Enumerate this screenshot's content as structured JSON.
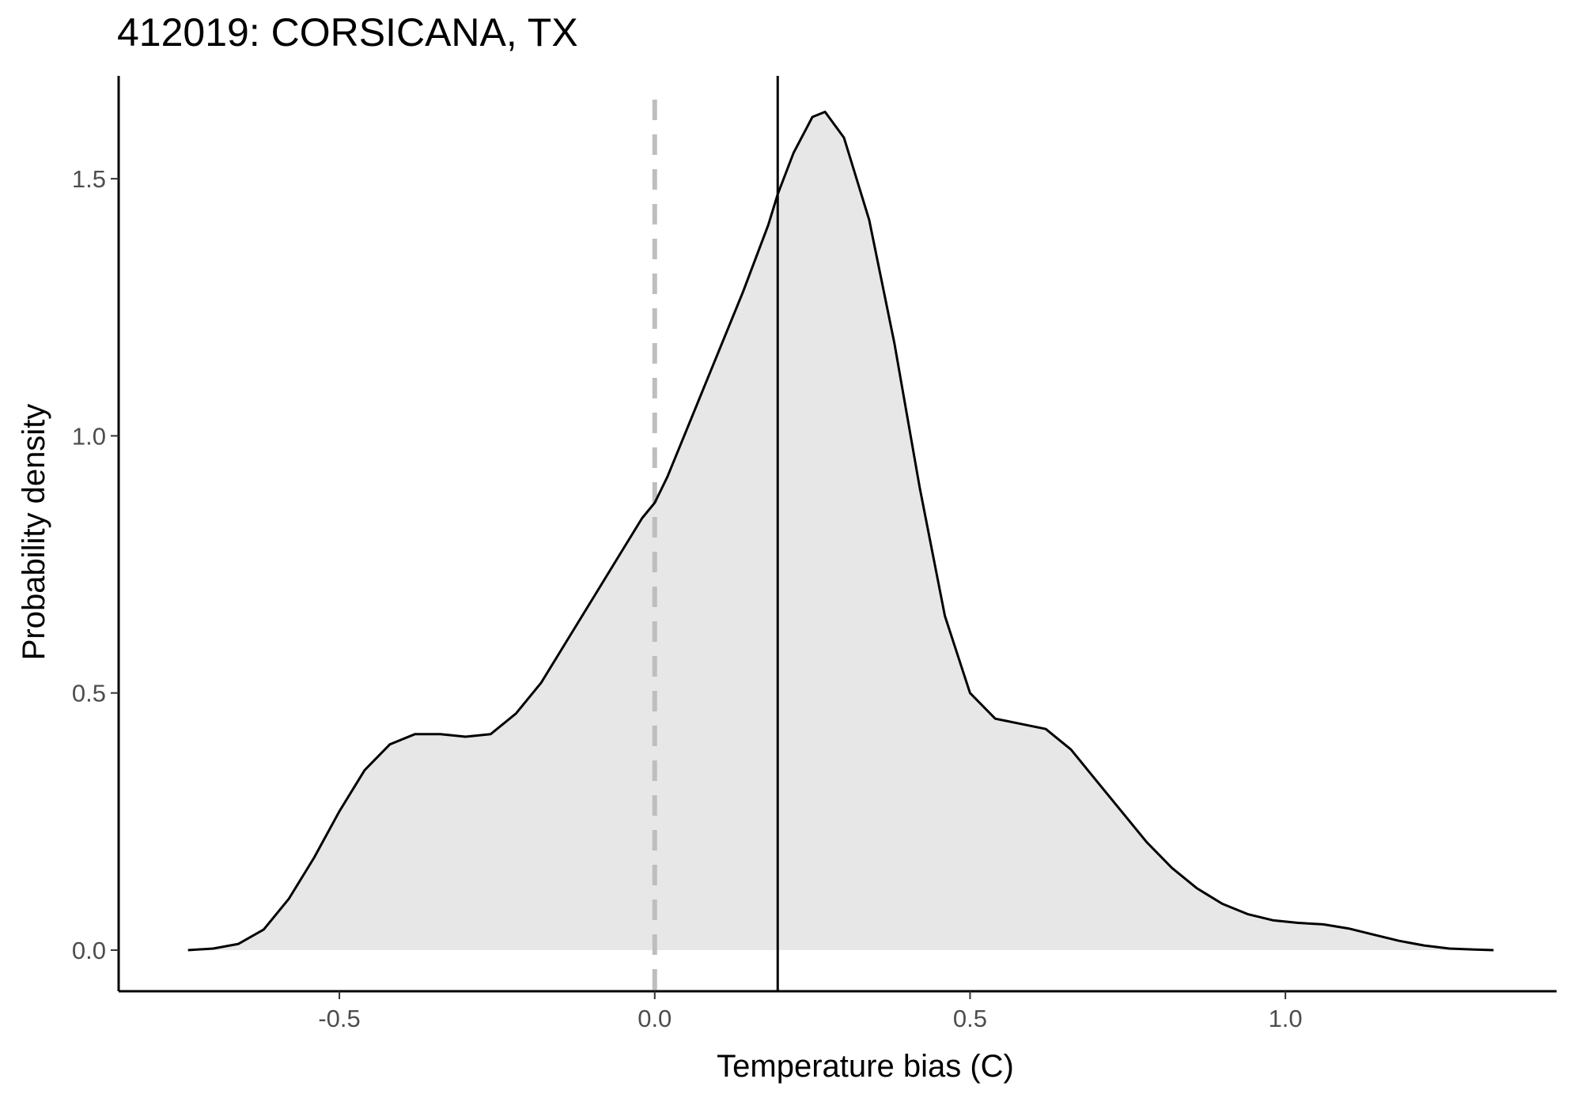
{
  "chart_data": {
    "type": "area",
    "title": "412019: CORSICANA, TX",
    "xlabel": "Temperature bias (C)",
    "ylabel": "Probability density",
    "xlim": [
      -0.85,
      1.43
    ],
    "ylim": [
      -0.08,
      1.7
    ],
    "xticks": [
      -0.5,
      0.0,
      0.5,
      1.0
    ],
    "xtick_labels": [
      "-0.5",
      "0.0",
      "0.5",
      "1.0"
    ],
    "yticks": [
      0.0,
      0.5,
      1.0,
      1.5
    ],
    "ytick_labels": [
      "0.0",
      "0.5",
      "1.0",
      "1.5"
    ],
    "grid": false,
    "fill_color": "#e6e7e6",
    "line_color": "#000000",
    "reference_lines": [
      {
        "x": 0.0,
        "style": "dashed",
        "color": "#bebebe"
      },
      {
        "x": 0.195,
        "style": "solid",
        "color": "#000000"
      }
    ],
    "density": {
      "x": [
        -0.74,
        -0.7,
        -0.66,
        -0.62,
        -0.58,
        -0.54,
        -0.5,
        -0.46,
        -0.42,
        -0.38,
        -0.34,
        -0.3,
        -0.26,
        -0.22,
        -0.18,
        -0.14,
        -0.1,
        -0.06,
        -0.02,
        0.0,
        0.02,
        0.06,
        0.1,
        0.14,
        0.18,
        0.195,
        0.22,
        0.25,
        0.27,
        0.3,
        0.34,
        0.38,
        0.42,
        0.46,
        0.5,
        0.54,
        0.58,
        0.62,
        0.66,
        0.7,
        0.74,
        0.78,
        0.82,
        0.86,
        0.9,
        0.94,
        0.98,
        1.02,
        1.06,
        1.1,
        1.14,
        1.18,
        1.22,
        1.26,
        1.3,
        1.33
      ],
      "y": [
        0.0,
        0.003,
        0.012,
        0.04,
        0.1,
        0.18,
        0.27,
        0.35,
        0.4,
        0.42,
        0.42,
        0.415,
        0.42,
        0.46,
        0.52,
        0.6,
        0.68,
        0.76,
        0.84,
        0.87,
        0.92,
        1.04,
        1.16,
        1.28,
        1.41,
        1.47,
        1.55,
        1.62,
        1.63,
        1.58,
        1.42,
        1.18,
        0.9,
        0.65,
        0.5,
        0.45,
        0.44,
        0.43,
        0.39,
        0.33,
        0.27,
        0.21,
        0.16,
        0.12,
        0.09,
        0.07,
        0.058,
        0.053,
        0.05,
        0.042,
        0.03,
        0.018,
        0.009,
        0.003,
        0.001,
        0.0
      ]
    }
  }
}
